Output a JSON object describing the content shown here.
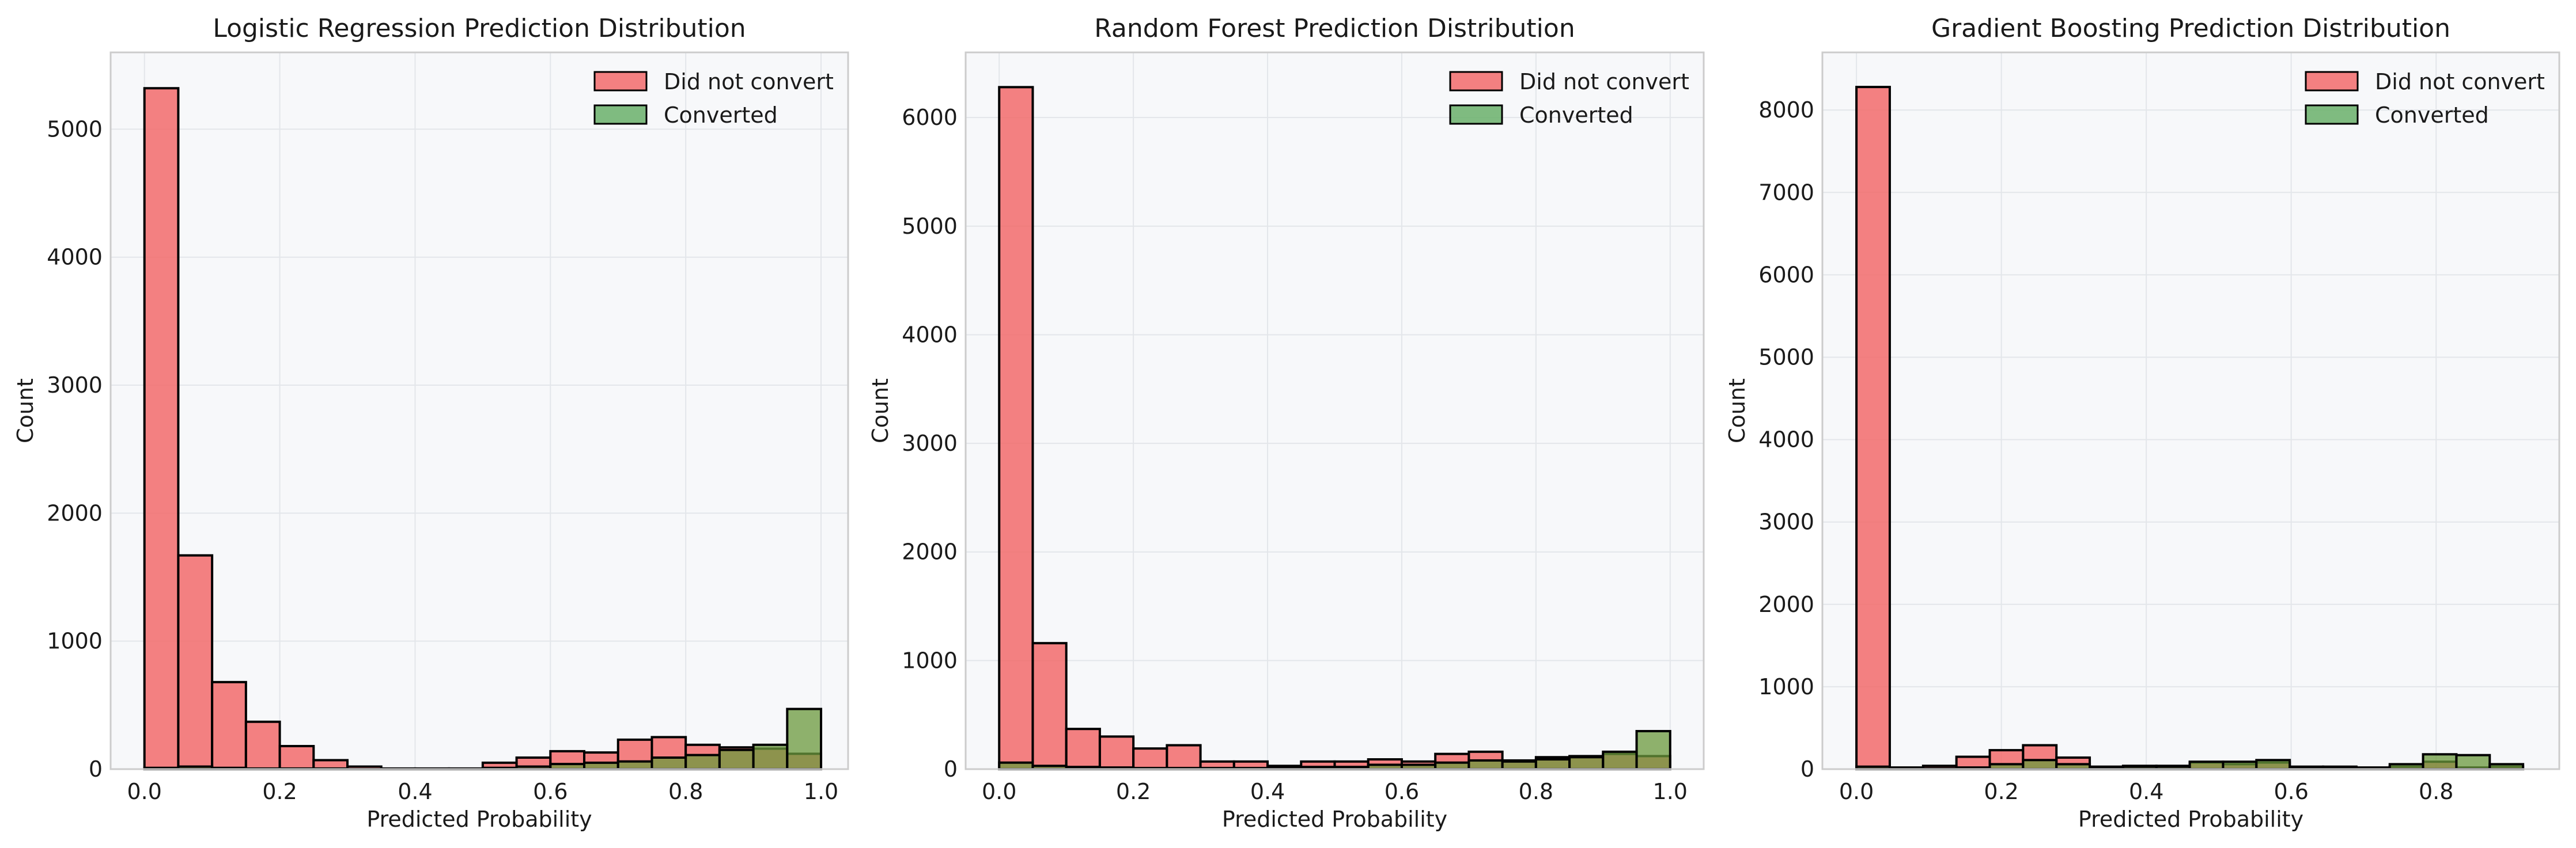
{
  "colors": {
    "did_not_convert": "#f26b6b",
    "converted": "#6ab06a",
    "overlap": "#6b9a3c",
    "plot_bg": "#f7f8fa",
    "grid": "#e3e6ea",
    "spine": "#cccccc",
    "edge": "#000000"
  },
  "chart_data": [
    {
      "type": "bar",
      "title": "Logistic Regression Prediction Distribution",
      "xlabel": "Predicted Probability",
      "ylabel": "Count",
      "xlim": [
        -0.05,
        1.04
      ],
      "ylim": [
        0,
        5600
      ],
      "xticks": [
        0.0,
        0.2,
        0.4,
        0.6,
        0.8,
        1.0
      ],
      "xtick_labels": [
        "0.0",
        "0.2",
        "0.4",
        "0.6",
        "0.8",
        "1.0"
      ],
      "yticks": [
        0,
        1000,
        2000,
        3000,
        4000,
        5000
      ],
      "ytick_labels": [
        "0",
        "1000",
        "2000",
        "3000",
        "4000",
        "5000"
      ],
      "legend": "top-right",
      "grid": true,
      "series": [
        {
          "name": "Did not convert",
          "bin_start": 0.0,
          "bin_width": 0.05,
          "values": [
            5320,
            1670,
            680,
            370,
            180,
            70,
            20,
            5,
            5,
            5,
            50,
            90,
            140,
            130,
            230,
            250,
            190,
            170,
            160,
            120
          ]
        },
        {
          "name": "Converted",
          "bin_start": 0.0,
          "bin_width": 0.05,
          "values": [
            10,
            20,
            10,
            5,
            5,
            5,
            0,
            0,
            0,
            0,
            10,
            20,
            40,
            50,
            60,
            90,
            110,
            150,
            190,
            470
          ]
        }
      ]
    },
    {
      "type": "bar",
      "title": "Random Forest Prediction Distribution",
      "xlabel": "Predicted Probability",
      "ylabel": "Count",
      "xlim": [
        -0.05,
        1.05
      ],
      "ylim": [
        0,
        6600
      ],
      "xticks": [
        0.0,
        0.2,
        0.4,
        0.6,
        0.8,
        1.0
      ],
      "xtick_labels": [
        "0.0",
        "0.2",
        "0.4",
        "0.6",
        "0.8",
        "1.0"
      ],
      "yticks": [
        0,
        1000,
        2000,
        3000,
        4000,
        5000,
        6000
      ],
      "ytick_labels": [
        "0",
        "1000",
        "2000",
        "3000",
        "4000",
        "5000",
        "6000"
      ],
      "legend": "top-right",
      "grid": true,
      "series": [
        {
          "name": "Did not convert",
          "bin_start": 0.0,
          "bin_width": 0.05,
          "values": [
            6280,
            1160,
            370,
            300,
            190,
            220,
            70,
            70,
            30,
            70,
            70,
            90,
            70,
            140,
            160,
            80,
            110,
            120,
            140,
            120
          ]
        },
        {
          "name": "Converted",
          "bin_start": 0.0,
          "bin_width": 0.05,
          "values": [
            60,
            30,
            20,
            15,
            10,
            10,
            10,
            10,
            10,
            20,
            20,
            40,
            40,
            60,
            80,
            70,
            90,
            110,
            160,
            350
          ]
        }
      ]
    },
    {
      "type": "bar",
      "title": "Gradient Boosting Prediction Distribution",
      "xlabel": "Predicted Probability",
      "ylabel": "Count",
      "xlim": [
        -0.047,
        0.97
      ],
      "ylim": [
        0,
        8700
      ],
      "xticks": [
        0.0,
        0.2,
        0.4,
        0.6,
        0.8
      ],
      "xtick_labels": [
        "0.0",
        "0.2",
        "0.4",
        "0.6",
        "0.8"
      ],
      "yticks": [
        0,
        1000,
        2000,
        3000,
        4000,
        5000,
        6000,
        7000,
        8000
      ],
      "ytick_labels": [
        "0",
        "1000",
        "2000",
        "3000",
        "4000",
        "5000",
        "6000",
        "7000",
        "8000"
      ],
      "legend": "top-right",
      "grid": true,
      "series": [
        {
          "name": "Did not convert",
          "bin_start": 0.0,
          "bin_width": 0.046,
          "values": [
            8280,
            20,
            40,
            150,
            230,
            290,
            140,
            30,
            40,
            40,
            80,
            60,
            80,
            30,
            30,
            20,
            30,
            90,
            20,
            30
          ]
        },
        {
          "name": "Converted",
          "bin_start": 0.0,
          "bin_width": 0.046,
          "values": [
            30,
            10,
            10,
            20,
            60,
            110,
            60,
            10,
            30,
            30,
            90,
            90,
            110,
            10,
            10,
            10,
            60,
            180,
            170,
            60
          ]
        }
      ]
    }
  ]
}
